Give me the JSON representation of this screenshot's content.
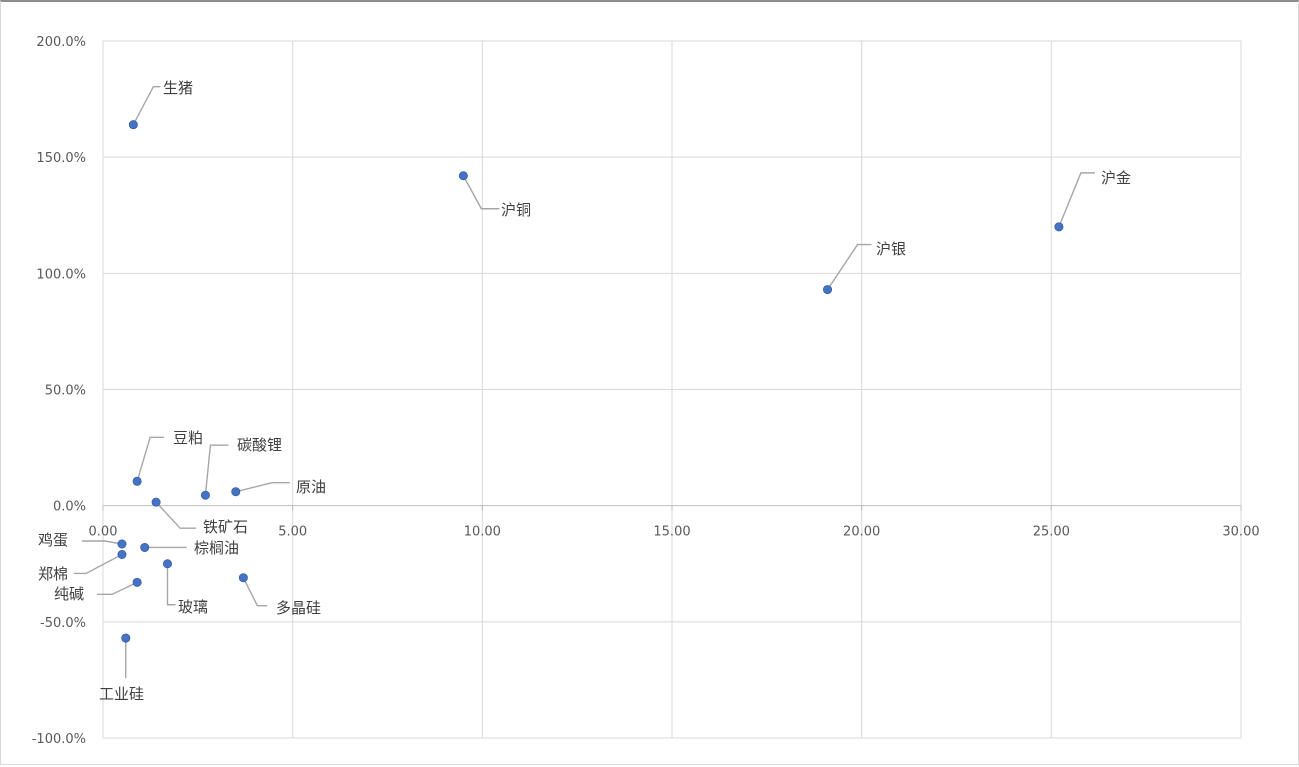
{
  "chart_data": {
    "type": "scatter",
    "title": "",
    "xlabel": "",
    "ylabel": "",
    "xlim": [
      0,
      30
    ],
    "ylim": [
      -100,
      200
    ],
    "x_ticks": [
      "0.00",
      "5.00",
      "10.00",
      "15.00",
      "20.00",
      "25.00",
      "30.00"
    ],
    "y_ticks": [
      "-100.0%",
      "-50.0%",
      "0.0%",
      "50.0%",
      "100.0%",
      "150.0%",
      "200.0%"
    ],
    "grid": true,
    "marker_color": "#4472c4",
    "points": [
      {
        "label": "生猪",
        "x": 0.8,
        "y": 164
      },
      {
        "label": "沪铜",
        "x": 9.5,
        "y": 142
      },
      {
        "label": "沪金",
        "x": 25.2,
        "y": 120
      },
      {
        "label": "沪银",
        "x": 19.1,
        "y": 93
      },
      {
        "label": "豆粕",
        "x": 0.9,
        "y": 10.5
      },
      {
        "label": "碳酸锂",
        "x": 2.7,
        "y": 4.5
      },
      {
        "label": "原油",
        "x": 3.5,
        "y": 6
      },
      {
        "label": "铁矿石",
        "x": 1.4,
        "y": 1.5
      },
      {
        "label": "鸡蛋",
        "x": 0.5,
        "y": -16.5
      },
      {
        "label": "棕榈油",
        "x": 1.1,
        "y": -18
      },
      {
        "label": "郑棉",
        "x": 0.5,
        "y": -21
      },
      {
        "label": "纯碱",
        "x": 0.9,
        "y": -33
      },
      {
        "label": "玻璃",
        "x": 1.7,
        "y": -25
      },
      {
        "label": "多晶硅",
        "x": 3.7,
        "y": -31
      },
      {
        "label": "工业硅",
        "x": 0.6,
        "y": -57
      }
    ]
  }
}
